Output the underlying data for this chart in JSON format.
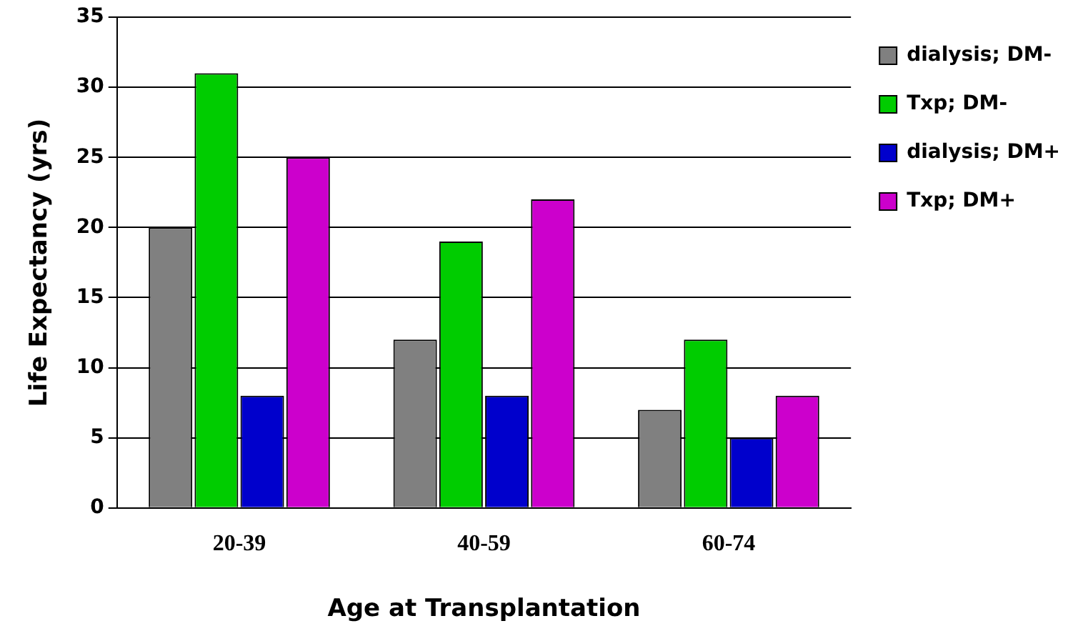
{
  "chart_data": {
    "type": "bar",
    "xlabel": "Age at Transplantation",
    "ylabel": "Life Expectancy (yrs)",
    "categories": [
      "20-39",
      "40-59",
      "60-74"
    ],
    "series": [
      {
        "name": "dialysis; DM-",
        "color": "#808080",
        "values": [
          20,
          12,
          7
        ]
      },
      {
        "name": "Txp; DM-",
        "color": "#00cc00",
        "values": [
          31,
          19,
          12
        ]
      },
      {
        "name": "dialysis; DM+",
        "color": "#0000cc",
        "values": [
          8,
          8,
          5
        ]
      },
      {
        "name": "Txp; DM+",
        "color": "#cc00cc",
        "values": [
          25,
          22,
          8
        ]
      }
    ],
    "ylim": [
      0,
      35
    ],
    "yticks": [
      0,
      5,
      10,
      15,
      20,
      25,
      30,
      35
    ],
    "grid": "y",
    "legend": "right"
  }
}
